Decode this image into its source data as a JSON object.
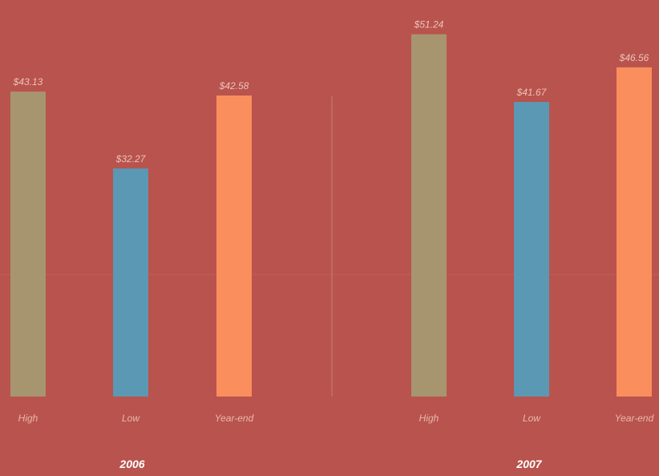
{
  "chart_data": [
    {
      "type": "bar",
      "title": "2006",
      "categories": [
        "High",
        "Low",
        "Year-end"
      ],
      "values": [
        43.13,
        32.27,
        42.58
      ],
      "value_labels": [
        "$43.13",
        "$32.27",
        "$42.58"
      ],
      "ylim": [
        0,
        52
      ],
      "grid": false
    },
    {
      "type": "bar",
      "title": "2007",
      "categories": [
        "High",
        "Low",
        "Year-end"
      ],
      "values": [
        51.24,
        41.67,
        46.56
      ],
      "value_labels": [
        "$51.24",
        "$41.67",
        "$46.56"
      ],
      "ylim": [
        0,
        52
      ],
      "grid": false
    }
  ],
  "colors": {
    "background": "#b9534d",
    "high": "#a79570",
    "low": "#5b98b3",
    "year_end": "#fa8e5d",
    "divider": "#d99a8e"
  }
}
